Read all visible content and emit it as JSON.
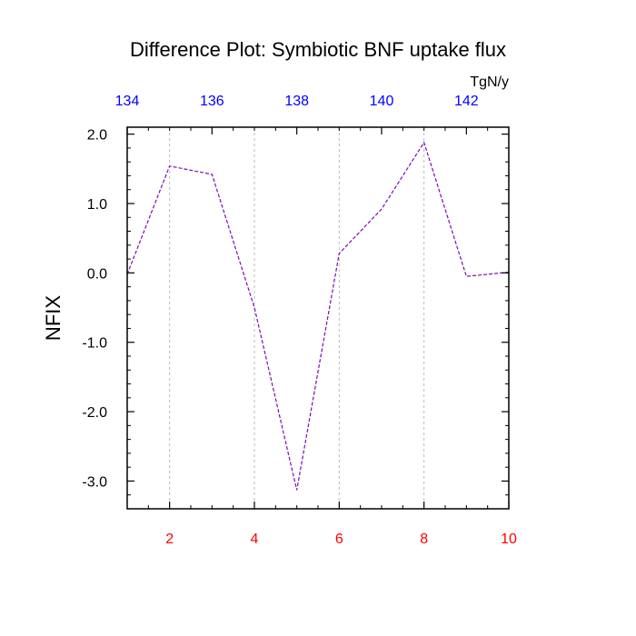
{
  "chart_data": {
    "type": "line",
    "title": "Difference Plot: Symbiotic BNF uptake flux",
    "units": "TgN/y",
    "ylabel": "NFIX",
    "xlabel": "",
    "x": [
      1,
      2,
      3,
      4,
      5,
      6,
      7,
      8,
      9,
      10
    ],
    "series": [
      {
        "values": [
          -0.02,
          1.54,
          1.42,
          -0.5,
          -3.13,
          0.28,
          0.92,
          1.88,
          -0.05,
          0.01
        ]
      }
    ],
    "xlim": [
      1,
      10
    ],
    "ylim": [
      -3.4,
      2.1
    ],
    "xticks": [
      2,
      4,
      6,
      8,
      10
    ],
    "xtick_labels": [
      "2",
      "4",
      "6",
      "8",
      "10"
    ],
    "yticks": [
      2.0,
      1.0,
      0.0,
      -1.0,
      -2.0,
      -3.0
    ],
    "ytick_labels": [
      "2.0",
      "1.0",
      "0.0",
      "-1.0",
      "-2.0",
      "-3.0"
    ],
    "top_axis": {
      "ticks": [
        1,
        3,
        5,
        7,
        9
      ],
      "labels": [
        "134",
        "136",
        "138",
        "140",
        "142"
      ]
    },
    "grid": "vertical dashed at bottom x ticks",
    "colors": {
      "line": "#7a0fb0",
      "bottom_tick_labels": "#ff0000",
      "top_tick_labels": "#0000ff",
      "grid": "#bbbbbb"
    }
  }
}
